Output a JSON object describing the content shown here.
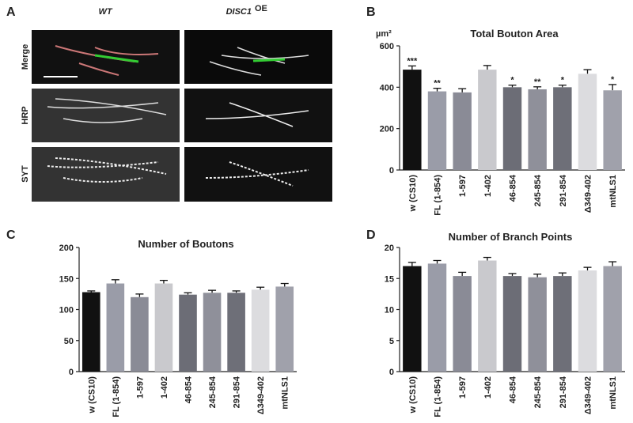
{
  "panel_a": {
    "label": "A",
    "columns": [
      "WT",
      "DISC1"
    ],
    "column_superscript": "OE",
    "rows": [
      "Merge",
      "HRP",
      "SYT"
    ]
  },
  "chart_data": [
    {
      "panel": "B",
      "type": "bar",
      "title": "Total Bouton Area",
      "y_label": "µm²",
      "categories": [
        "w (CS10)",
        "FL (1-854)",
        "1-597",
        "1-402",
        "46-854",
        "245-854",
        "291-854",
        "Δ349-402",
        "mtNLS1"
      ],
      "values": [
        485,
        380,
        375,
        485,
        400,
        390,
        400,
        465,
        385
      ],
      "errors": [
        18,
        15,
        18,
        20,
        10,
        12,
        10,
        20,
        28
      ],
      "annotations": [
        "***",
        "**",
        null,
        null,
        "*",
        "**",
        "*",
        null,
        "*"
      ],
      "colors": [
        "#111111",
        "#9a9ca8",
        "#8a8b96",
        "#c9c9cd",
        "#6c6d76",
        "#8f909a",
        "#6e6f78",
        "#dcdcdf",
        "#a0a1ab"
      ],
      "ylim": [
        0,
        600
      ],
      "yticks": [
        0,
        200,
        400,
        600
      ]
    },
    {
      "panel": "C",
      "type": "bar",
      "title": "Number of Boutons",
      "categories": [
        "w (CS10)",
        "FL (1-854)",
        "1-597",
        "1-402",
        "46-854",
        "245-854",
        "291-854",
        "Δ349-402",
        "mtNLS1"
      ],
      "values": [
        128,
        142,
        120,
        142,
        124,
        127,
        127,
        132,
        137
      ],
      "errors": [
        2,
        6,
        5,
        5,
        3,
        4,
        3,
        4,
        5
      ],
      "colors": [
        "#111111",
        "#9a9ca8",
        "#8a8b96",
        "#c9c9cd",
        "#6c6d76",
        "#8f909a",
        "#6e6f78",
        "#dcdcdf",
        "#a0a1ab"
      ],
      "ylim": [
        0,
        200
      ],
      "yticks": [
        0,
        50,
        100,
        150,
        200
      ]
    },
    {
      "panel": "D",
      "type": "bar",
      "title": "Number of Branch Points",
      "categories": [
        "w (CS10)",
        "FL (1-854)",
        "1-597",
        "1-402",
        "46-854",
        "245-854",
        "291-854",
        "Δ349-402",
        "mtNLS1"
      ],
      "values": [
        17.0,
        17.4,
        15.4,
        17.9,
        15.4,
        15.2,
        15.4,
        16.3,
        17.0
      ],
      "errors": [
        0.6,
        0.5,
        0.6,
        0.5,
        0.4,
        0.5,
        0.5,
        0.5,
        0.7
      ],
      "colors": [
        "#111111",
        "#9a9ca8",
        "#8a8b96",
        "#c9c9cd",
        "#6c6d76",
        "#8f909a",
        "#6e6f78",
        "#dcdcdf",
        "#a0a1ab"
      ],
      "ylim": [
        0,
        20
      ],
      "yticks": [
        0,
        5,
        10,
        15,
        20
      ]
    }
  ]
}
